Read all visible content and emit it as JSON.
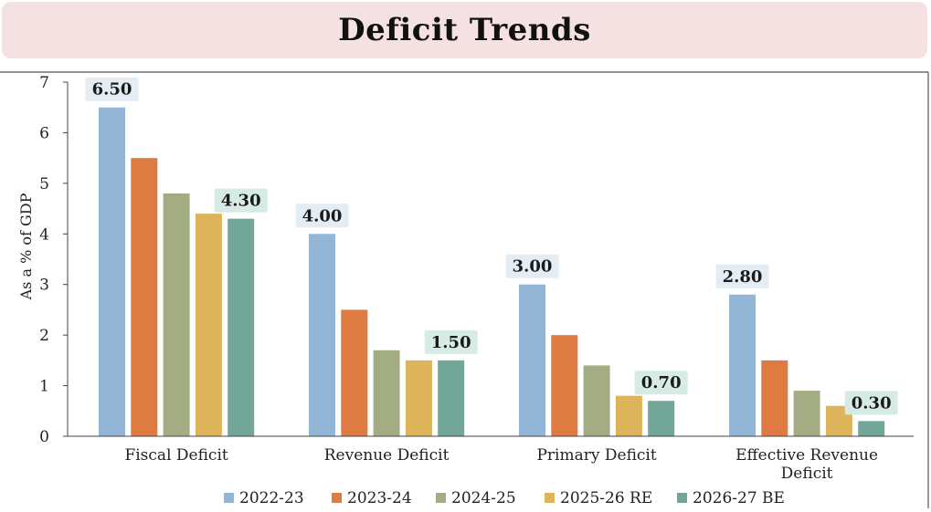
{
  "title": "Deficit Trends",
  "chart_data": {
    "type": "bar",
    "title": "Deficit Trends",
    "xlabel": "",
    "ylabel": "As a % of GDP",
    "ylim": [
      0,
      7
    ],
    "yticks": [
      "0",
      "1",
      "2",
      "3",
      "4",
      "5",
      "6",
      "7"
    ],
    "grid": false,
    "legend_position": "bottom",
    "categories": [
      [
        "Fiscal Deficit"
      ],
      [
        "Revenue Deficit"
      ],
      [
        "Primary Deficit"
      ],
      [
        "Effective Revenue",
        "Deficit"
      ]
    ],
    "series": [
      {
        "name": "2022-23",
        "color": "#94b6d6",
        "values": [
          6.5,
          4.0,
          3.0,
          2.8
        ]
      },
      {
        "name": "2023-24",
        "color": "#de7b43",
        "values": [
          5.5,
          2.5,
          2.0,
          1.5
        ]
      },
      {
        "name": "2024-25",
        "color": "#a4ac84",
        "values": [
          4.8,
          1.7,
          1.4,
          0.9
        ]
      },
      {
        "name": "2025-26 RE",
        "color": "#ddb45a",
        "values": [
          4.4,
          1.5,
          0.8,
          0.6
        ]
      },
      {
        "name": "2026-27 BE",
        "color": "#72a699",
        "values": [
          4.3,
          1.5,
          0.7,
          0.3
        ]
      }
    ],
    "data_labels": [
      {
        "text": "6.50",
        "category": 0,
        "series": 0,
        "style": "blue"
      },
      {
        "text": "4.30",
        "category": 0,
        "series": 4,
        "style": "teal"
      },
      {
        "text": "4.00",
        "category": 1,
        "series": 0,
        "style": "blue"
      },
      {
        "text": "1.50",
        "category": 1,
        "series": 4,
        "style": "teal"
      },
      {
        "text": "3.00",
        "category": 2,
        "series": 0,
        "style": "blue"
      },
      {
        "text": "0.70",
        "category": 2,
        "series": 4,
        "style": "teal"
      },
      {
        "text": "2.80",
        "category": 3,
        "series": 0,
        "style": "blue"
      },
      {
        "text": "0.30",
        "category": 3,
        "series": 4,
        "style": "teal"
      }
    ],
    "label_colors": {
      "blue": "#e4ecf4",
      "teal": "#d7ebe6"
    }
  }
}
